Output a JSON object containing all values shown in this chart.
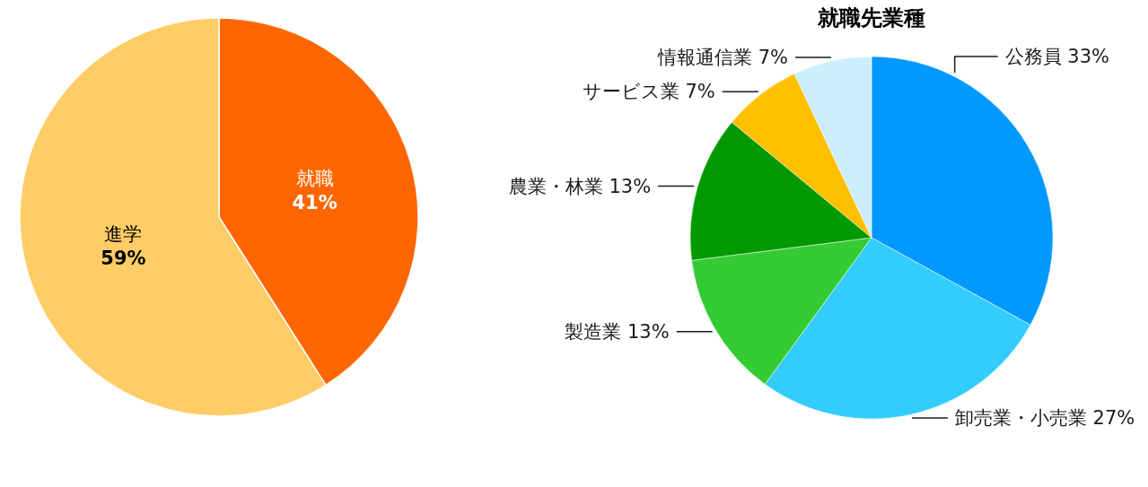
{
  "chart_data": [
    {
      "type": "pie",
      "categories": [
        "就職",
        "進学"
      ],
      "values": [
        41,
        59
      ],
      "colors": [
        "#ff6600",
        "#ffcc66"
      ],
      "value_labels": [
        "41%",
        "59%"
      ]
    },
    {
      "type": "pie",
      "title": "就職先業種",
      "categories": [
        "公務員",
        "卸売業・小売業",
        "製造業",
        "農業・林業",
        "サービス業",
        "情報通信業"
      ],
      "values": [
        33,
        27,
        13,
        13,
        7,
        7
      ],
      "colors": [
        "#0099ff",
        "#33ccff",
        "#33cc33",
        "#009900",
        "#ffc000",
        "#cceeff"
      ],
      "value_labels": [
        "33%",
        "27%",
        "13%",
        "13%",
        "7%",
        "7%"
      ]
    }
  ]
}
